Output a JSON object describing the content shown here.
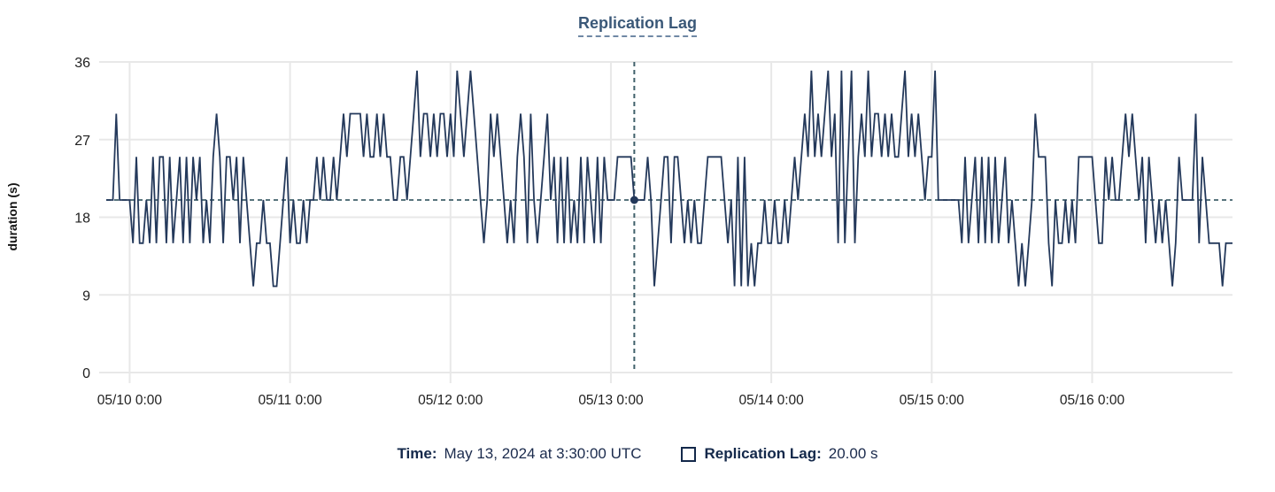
{
  "title": "Replication Lag",
  "colors": {
    "line": "#24395b",
    "title_text": "#3a5878",
    "crosshair": "#40616b",
    "grid": "#e8e8e8",
    "axis_text": "#1f1f1f",
    "tooltip_text": "#13284a"
  },
  "tooltip": {
    "time_label": "Time:",
    "time_value": "May 13, 2024 at 3:30:00 UTC",
    "series_label": "Replication Lag:",
    "series_value": "20.00 s",
    "swatch": "hollow-square"
  },
  "chart_data": {
    "type": "line",
    "title": "Replication Lag",
    "xlabel": "",
    "ylabel": "duration (s)",
    "ylim": [
      0,
      36
    ],
    "yticks": [
      0,
      9,
      18,
      27,
      36
    ],
    "grid": true,
    "x_start": "05/09 20:30",
    "x_step_minutes": 30,
    "xtick_labels": [
      "05/10 0:00",
      "05/11 0:00",
      "05/12 0:00",
      "05/13 0:00",
      "05/14 0:00",
      "05/15 0:00",
      "05/16 0:00"
    ],
    "xtick_indices": [
      7,
      55,
      103,
      151,
      199,
      247,
      295
    ],
    "series_name": "Replication Lag",
    "unit": "s",
    "crosshair": {
      "index": 158,
      "value": 20,
      "time_label": "May 13, 2024 at 3:30:00 UTC"
    },
    "values": [
      20,
      20,
      20,
      30,
      20,
      20,
      20,
      20,
      15,
      25,
      15,
      15,
      20,
      15,
      25,
      15,
      25,
      25,
      15,
      25,
      15,
      20,
      25,
      15,
      25,
      15,
      25,
      20,
      25,
      15,
      20,
      15,
      25,
      30,
      25,
      15,
      25,
      25,
      20,
      25,
      15,
      25,
      20,
      15,
      10,
      15,
      15,
      20,
      15,
      15,
      10,
      10,
      15,
      20,
      25,
      15,
      20,
      15,
      15,
      20,
      15,
      20,
      20,
      25,
      20,
      25,
      20,
      20,
      25,
      20,
      25,
      30,
      25,
      30,
      30,
      30,
      30,
      25,
      30,
      25,
      25,
      30,
      25,
      30,
      25,
      25,
      20,
      20,
      25,
      25,
      20,
      25,
      30,
      35,
      25,
      30,
      30,
      25,
      30,
      25,
      30,
      30,
      25,
      30,
      25,
      35,
      30,
      25,
      30,
      35,
      30,
      25,
      20,
      15,
      20,
      30,
      25,
      30,
      25,
      20,
      15,
      20,
      15,
      25,
      30,
      25,
      15,
      30,
      20,
      15,
      20,
      25,
      30,
      20,
      25,
      15,
      25,
      15,
      25,
      15,
      20,
      15,
      25,
      15,
      25,
      20,
      15,
      25,
      15,
      25,
      20,
      20,
      20,
      25,
      25,
      25,
      25,
      25,
      20,
      20,
      20,
      20,
      25,
      20,
      10,
      15,
      20,
      25,
      25,
      15,
      25,
      25,
      20,
      15,
      20,
      15,
      20,
      15,
      15,
      20,
      25,
      25,
      25,
      25,
      25,
      20,
      15,
      20,
      10,
      25,
      10,
      25,
      10,
      15,
      10,
      15,
      15,
      20,
      15,
      15,
      20,
      15,
      15,
      20,
      15,
      20,
      25,
      20,
      25,
      30,
      25,
      35,
      25,
      30,
      25,
      30,
      35,
      25,
      30,
      15,
      35,
      15,
      25,
      35,
      15,
      25,
      30,
      25,
      35,
      25,
      30,
      30,
      25,
      30,
      25,
      30,
      25,
      25,
      30,
      35,
      25,
      30,
      25,
      30,
      25,
      20,
      25,
      25,
      35,
      20,
      20,
      20,
      20,
      20,
      20,
      20,
      15,
      25,
      15,
      20,
      25,
      15,
      25,
      15,
      25,
      15,
      25,
      15,
      20,
      25,
      15,
      20,
      15,
      10,
      15,
      10,
      15,
      20,
      30,
      25,
      25,
      25,
      15,
      10,
      20,
      15,
      15,
      20,
      15,
      20,
      15,
      25,
      25,
      25,
      25,
      25,
      20,
      15,
      15,
      25,
      20,
      25,
      20,
      20,
      25,
      30,
      25,
      30,
      25,
      20,
      25,
      15,
      25,
      20,
      15,
      20,
      15,
      20,
      15,
      10,
      15,
      25,
      20,
      20,
      20,
      20,
      30,
      15,
      25,
      20,
      15,
      15,
      15,
      15,
      10,
      15,
      15,
      15
    ]
  }
}
